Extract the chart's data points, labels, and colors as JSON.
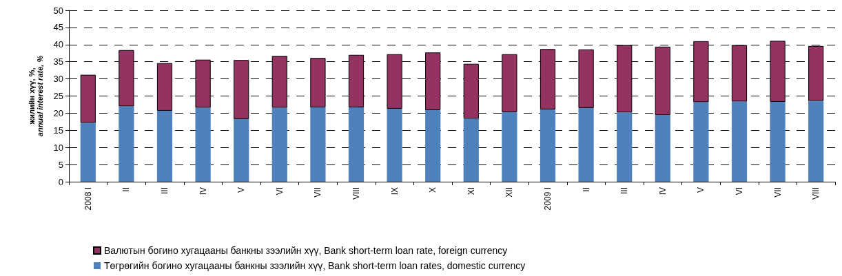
{
  "chart_data": {
    "type": "bar",
    "stacked": true,
    "ylabel": "жилийн хүү, %,\nannual interest rate, %",
    "categories": [
      "2008 I",
      "II",
      "III",
      "IV",
      "V",
      "VI",
      "VII",
      "VIII",
      "IX",
      "X",
      "XI",
      "XII",
      "2009 I",
      "II",
      "III",
      "IV",
      "V",
      "VI",
      "VII",
      "VIII"
    ],
    "series": [
      {
        "name": "Төгрөгийн богино хугацааны банкны зээлийн хүү, Bank short-term loan rates, domestic currency",
        "color": "#4f81bd",
        "values": [
          17.2,
          22.0,
          20.7,
          21.6,
          18.3,
          21.6,
          21.7,
          21.7,
          21.3,
          20.9,
          18.4,
          20.3,
          21.1,
          21.5,
          20.2,
          19.4,
          23.2,
          23.4,
          23.3,
          23.6
        ]
      },
      {
        "name": "Валютын богино хугацааны банкны зээлийн хүү, Bank short-term loan rate, foreign currency",
        "color": "#943262",
        "values": [
          14.0,
          16.4,
          13.9,
          14.0,
          17.2,
          15.1,
          14.4,
          15.3,
          15.9,
          16.8,
          16.0,
          16.9,
          17.6,
          17.1,
          19.7,
          20.0,
          17.8,
          16.5,
          17.8,
          16.0
        ]
      }
    ],
    "ylim": [
      0,
      50
    ],
    "yticks": [
      0,
      5,
      10,
      15,
      20,
      25,
      30,
      35,
      40,
      45,
      50
    ],
    "grid": "y",
    "legend": "bottom left"
  }
}
